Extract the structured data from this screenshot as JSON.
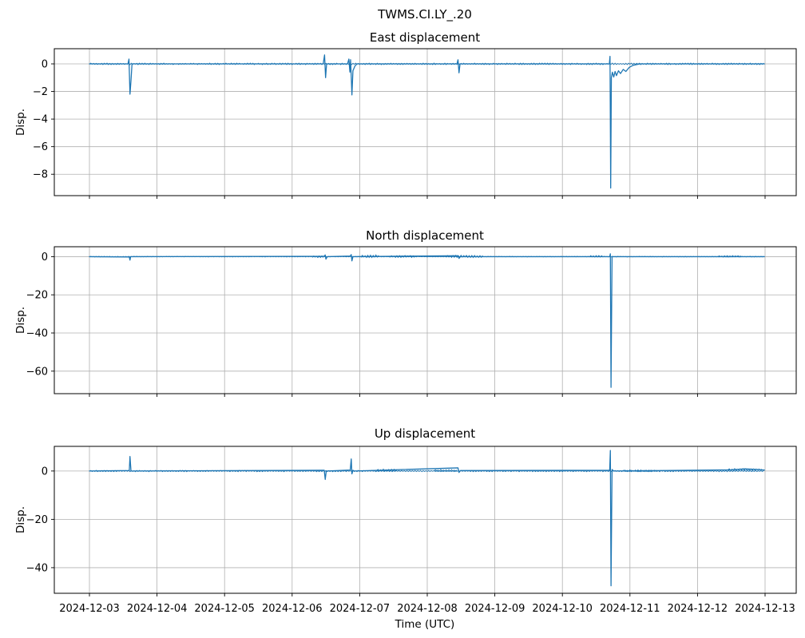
{
  "figure": {
    "title": "TWMS.CI.LY_.20",
    "xlabel": "Time (UTC)",
    "background_color": "#ffffff",
    "line_color": "#1f77b4",
    "grid_color": "#b0b0b0",
    "spine_color": "#000000",
    "text_color": "#000000"
  },
  "x_axis": {
    "tick_labels": [
      "2024-12-03",
      "2024-12-04",
      "2024-12-05",
      "2024-12-06",
      "2024-12-07",
      "2024-12-08",
      "2024-12-09",
      "2024-12-10",
      "2024-12-11",
      "2024-12-12",
      "2024-12-13"
    ],
    "tick_positions_days": [
      0,
      1,
      2,
      3,
      4,
      5,
      6,
      7,
      8,
      9,
      10
    ],
    "xlim_days": [
      -0.52,
      10.46
    ],
    "x_unit": "days since 2024-12-03 00:00 UTC"
  },
  "chart_data": [
    {
      "type": "line",
      "title": "East displacement",
      "ylabel": "Disp.",
      "yticks": [
        0,
        -2,
        -4,
        -6,
        -8
      ],
      "ylim": [
        -9.55,
        1.1
      ],
      "grid": true,
      "legend": "none",
      "points": [
        [
          0.0,
          0.0
        ],
        [
          0.57,
          0.0
        ],
        [
          0.585,
          0.35
        ],
        [
          0.6,
          -2.2
        ],
        [
          0.615,
          -1.2
        ],
        [
          0.63,
          0.0
        ],
        [
          3.46,
          0.0
        ],
        [
          3.48,
          0.65
        ],
        [
          3.495,
          -1.0
        ],
        [
          3.51,
          0.0
        ],
        [
          3.82,
          0.0
        ],
        [
          3.84,
          0.35
        ],
        [
          3.855,
          -0.6
        ],
        [
          3.865,
          0.3
        ],
        [
          3.875,
          -0.9
        ],
        [
          3.885,
          -2.25
        ],
        [
          3.9,
          -0.5
        ],
        [
          3.93,
          -0.15
        ],
        [
          3.96,
          0.0
        ],
        [
          5.44,
          0.0
        ],
        [
          5.455,
          0.3
        ],
        [
          5.47,
          -0.65
        ],
        [
          5.485,
          0.0
        ],
        [
          7.695,
          0.0
        ],
        [
          7.705,
          0.55
        ],
        [
          7.715,
          -9.0
        ],
        [
          7.725,
          -1.0
        ],
        [
          7.74,
          -0.6
        ],
        [
          7.76,
          -0.95
        ],
        [
          7.78,
          -0.55
        ],
        [
          7.8,
          -0.85
        ],
        [
          7.83,
          -0.5
        ],
        [
          7.86,
          -0.7
        ],
        [
          7.9,
          -0.4
        ],
        [
          7.94,
          -0.55
        ],
        [
          7.99,
          -0.25
        ],
        [
          8.05,
          -0.1
        ],
        [
          8.15,
          0.0
        ],
        [
          9.99,
          0.0
        ]
      ],
      "noise_bands": [
        {
          "t0": 0.0,
          "t1": 9.99,
          "amp": 0.06,
          "base": 0.0
        }
      ]
    },
    {
      "type": "line",
      "title": "North displacement",
      "ylabel": "Disp.",
      "yticks": [
        0,
        -20,
        -40,
        -60
      ],
      "ylim": [
        -71.8,
        5.2
      ],
      "grid": true,
      "legend": "none",
      "points": [
        [
          0.0,
          0.0
        ],
        [
          0.59,
          -0.2
        ],
        [
          0.6,
          -1.8
        ],
        [
          0.61,
          0.0
        ],
        [
          3.47,
          0.2
        ],
        [
          3.49,
          0.9
        ],
        [
          3.5,
          -1.3
        ],
        [
          3.52,
          0.0
        ],
        [
          3.86,
          0.3
        ],
        [
          3.875,
          1.1
        ],
        [
          3.885,
          -2.2
        ],
        [
          3.9,
          0.0
        ],
        [
          5.455,
          0.5
        ],
        [
          5.47,
          -0.9
        ],
        [
          5.49,
          0.0
        ],
        [
          7.7,
          0.0
        ],
        [
          7.71,
          1.5
        ],
        [
          7.72,
          -68.5
        ],
        [
          7.735,
          0.0
        ],
        [
          9.99,
          0.0
        ]
      ],
      "noise_bands": [
        {
          "t0": 0.0,
          "t1": 9.99,
          "amp": 0.18,
          "base": 0.0
        },
        {
          "t0": 3.3,
          "t1": 3.46,
          "amp": 0.5,
          "base": 0.0
        },
        {
          "t0": 4.02,
          "t1": 4.28,
          "amp": 0.7,
          "base": 0.2
        },
        {
          "t0": 4.45,
          "t1": 4.82,
          "amp": 0.55,
          "base": 0.1
        },
        {
          "t0": 5.28,
          "t1": 5.82,
          "amp": 0.6,
          "base": 0.15
        },
        {
          "t0": 7.4,
          "t1": 7.6,
          "amp": 0.45,
          "base": 0.2
        },
        {
          "t0": 9.3,
          "t1": 9.65,
          "amp": 0.4,
          "base": 0.15
        }
      ]
    },
    {
      "type": "line",
      "title": "Up displacement",
      "ylabel": "Disp.",
      "yticks": [
        0,
        -20,
        -40
      ],
      "ylim": [
        -50.6,
        10.2
      ],
      "grid": true,
      "legend": "none",
      "points": [
        [
          0.0,
          0.0
        ],
        [
          0.59,
          0.2
        ],
        [
          0.6,
          6.0
        ],
        [
          0.615,
          0.0
        ],
        [
          3.475,
          0.3
        ],
        [
          3.49,
          -3.5
        ],
        [
          3.505,
          0.0
        ],
        [
          3.86,
          0.4
        ],
        [
          3.875,
          5.0
        ],
        [
          3.885,
          -1.2
        ],
        [
          3.9,
          0.3
        ],
        [
          3.92,
          0.0
        ],
        [
          5.455,
          1.3
        ],
        [
          5.47,
          -0.6
        ],
        [
          5.49,
          0.2
        ],
        [
          7.7,
          0.3
        ],
        [
          7.71,
          8.5
        ],
        [
          7.72,
          -47.5
        ],
        [
          7.735,
          0.6
        ],
        [
          7.76,
          0.0
        ],
        [
          9.5,
          0.5
        ],
        [
          9.7,
          0.9
        ],
        [
          9.85,
          0.7
        ],
        [
          9.99,
          0.4
        ]
      ],
      "noise_bands": [
        {
          "t0": 0.0,
          "t1": 9.99,
          "amp": 0.3,
          "base": 0.0
        },
        {
          "t0": 4.25,
          "t1": 4.55,
          "amp": 0.5,
          "base": 0.3
        },
        {
          "t0": 5.1,
          "t1": 5.45,
          "amp": 0.4,
          "base": 0.2
        },
        {
          "t0": 7.9,
          "t1": 8.4,
          "amp": 0.4,
          "base": 0.1
        },
        {
          "t0": 9.45,
          "t1": 9.95,
          "amp": 0.4,
          "base": 0.6
        }
      ]
    }
  ]
}
